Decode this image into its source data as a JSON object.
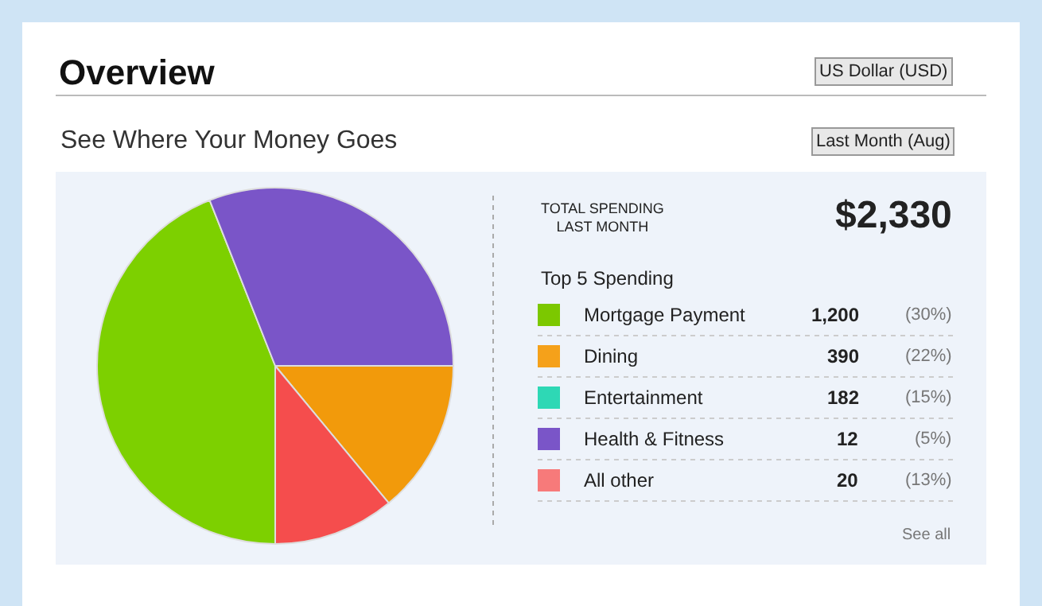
{
  "chart_data": [
    {
      "type": "pie",
      "title": "Overview",
      "subtitle": "See Where Your Money Goes",
      "annotations": [
        "US Dollar (USD)",
        "Last Month (Aug)"
      ],
      "categories": [
        null,
        null,
        null,
        null
      ],
      "values": [
        44,
        31,
        14,
        11
      ],
      "colors": [
        "#7dd000",
        "#7a55c8",
        "#f29a0b",
        "#f54d4d"
      ]
    },
    {
      "type": "other",
      "title": "Top 5 Spending",
      "categories": [
        "Mortgage Payment",
        "Dining",
        "Entertainment",
        "Health & Fitness",
        "All other"
      ],
      "values": [
        1200,
        390,
        182,
        12,
        20
      ],
      "colors": [
        "#7cc800",
        "#f5a11a",
        "#2ed8b5",
        "#7a55c8",
        "#f77a7a"
      ],
      "value_labels": [
        "1,200",
        "390",
        "182",
        "12",
        "20"
      ],
      "annotations": [
        "TOTAL SPENDING\nLAST MONTH",
        "$2,330",
        "See all",
        "(30%)",
        "(22%)",
        "(15%)",
        "(5%)",
        "(13%)"
      ]
    }
  ]
}
